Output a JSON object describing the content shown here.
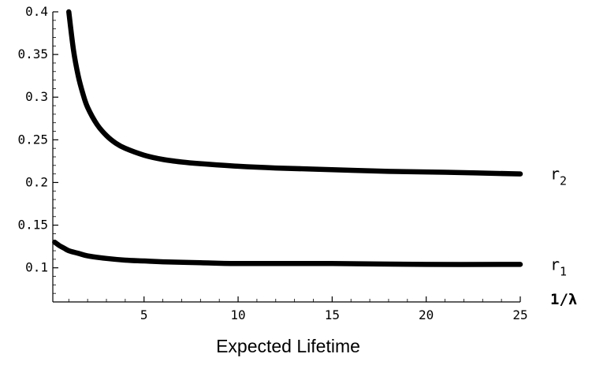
{
  "chart_data": {
    "type": "line",
    "title": "",
    "xlabel": "Expected Lifetime",
    "ylabel": "",
    "x_axis_end_label": "1/λ",
    "xlim": [
      0.15,
      25
    ],
    "ylim": [
      0.06,
      0.4
    ],
    "xticks": [
      5,
      10,
      15,
      20,
      25
    ],
    "yticks": [
      0.1,
      0.15,
      0.2,
      0.25,
      0.3,
      0.35,
      0.4
    ],
    "xtick_labels": [
      "5",
      "10",
      "15",
      "20",
      "25"
    ],
    "ytick_labels": [
      "0.1",
      "0.15",
      "0.2",
      "0.25",
      "0.3",
      "0.35",
      "0.4"
    ],
    "grid": false,
    "legend": "none",
    "series": [
      {
        "name": "r2",
        "label_main": "r",
        "label_sub": "2",
        "color": "#000000",
        "x": [
          1.0,
          1.25,
          1.5,
          1.75,
          2.0,
          2.5,
          3.0,
          3.5,
          4.0,
          5.0,
          6.0,
          7.0,
          8.0,
          10.0,
          12.0,
          15.0,
          18.0,
          21.0,
          25.0
        ],
        "y": [
          0.4,
          0.355,
          0.325,
          0.304,
          0.288,
          0.268,
          0.255,
          0.246,
          0.24,
          0.232,
          0.227,
          0.224,
          0.222,
          0.219,
          0.217,
          0.215,
          0.213,
          0.212,
          0.21
        ]
      },
      {
        "name": "r1",
        "label_main": "r",
        "label_sub": "1",
        "color": "#000000",
        "x": [
          0.25,
          0.5,
          0.75,
          1.0,
          1.5,
          2.0,
          3.0,
          4.0,
          5.0,
          6.0,
          8.0,
          10.0,
          15.0,
          20.0,
          25.0
        ],
        "y": [
          0.13,
          0.126,
          0.123,
          0.12,
          0.117,
          0.114,
          0.111,
          0.109,
          0.108,
          0.107,
          0.106,
          0.105,
          0.105,
          0.104,
          0.104
        ]
      }
    ]
  }
}
